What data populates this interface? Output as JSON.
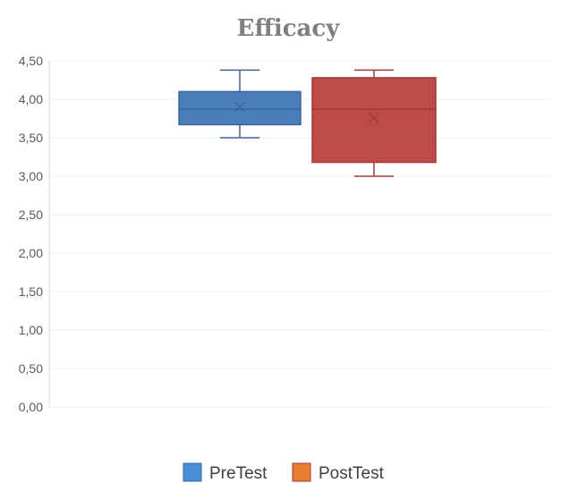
{
  "chart_data": {
    "type": "boxplot",
    "title": "Efficacy",
    "xlabel": "",
    "ylabel": "",
    "ylim": [
      0,
      4.5
    ],
    "y_ticks": [
      "0,00",
      "0,50",
      "1,00",
      "1,50",
      "2,00",
      "2,50",
      "3,00",
      "3,50",
      "4,00",
      "4,50"
    ],
    "y_tick_values": [
      0,
      0.5,
      1,
      1.5,
      2,
      2.5,
      3,
      3.5,
      4,
      4.5
    ],
    "grid": true,
    "legend_position": "bottom",
    "series": [
      {
        "name": "PreTest",
        "min": 3.5,
        "q1": 3.67,
        "median": 3.87,
        "q3": 4.1,
        "max": 4.38,
        "mean": 3.9,
        "fill": "#4a7ebb",
        "stroke": "#3a65a0",
        "legend_color": "#4a90d9"
      },
      {
        "name": "PostTest",
        "min": 3.0,
        "q1": 3.18,
        "median": 3.87,
        "q3": 4.28,
        "max": 4.38,
        "mean": 3.76,
        "fill": "#be4b48",
        "stroke": "#9e3b39",
        "legend_color": "#e87e2e"
      }
    ]
  }
}
